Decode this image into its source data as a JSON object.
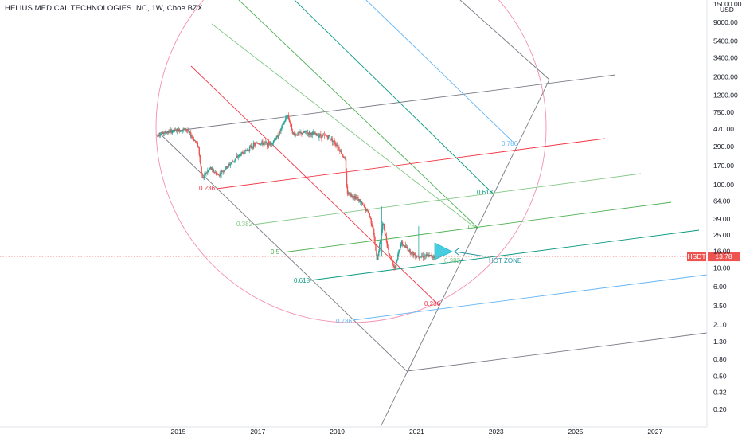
{
  "chart_title": "HELIUS MEDICAL TECHNOLOGIES INC, 1W, Cboe BZX",
  "colors": {
    "up": "#26a69a",
    "down": "#ef5350",
    "price_tag": "#ef5350",
    "fib_236": "#f23645",
    "fib_382": "#81c784",
    "fib_5": "#4caf50",
    "fib_618": "#089981",
    "fib_786": "#64b5f6",
    "hot_zone": "#26c6da"
  },
  "chart_data": {
    "type": "candlestick",
    "symbol": "HSDT",
    "interval": "1W",
    "exchange": "Cboe BZX",
    "yscale": "log",
    "currency": "USD",
    "last_price": 13.78,
    "y_ticks": [
      15000,
      9000,
      5400,
      3400,
      2000,
      1200,
      750,
      470,
      290,
      170,
      100,
      64,
      39,
      25,
      16,
      10,
      6,
      3.5,
      2.1,
      1.3,
      0.8,
      0.5,
      0.32,
      0.2
    ],
    "y_tick_labels": [
      "15000.00",
      "9000.00",
      "5400.00",
      "3400.00",
      "2000.00",
      "1200.00",
      "750.00",
      "470.00",
      "290.00",
      "170.00",
      "100.00",
      "64.00",
      "39.00",
      "25.00",
      "16.00",
      "10.00",
      "6.00",
      "3.50",
      "2.10",
      "1.30",
      "0.80",
      "0.50",
      "0.32",
      "0.20"
    ],
    "x_tick_labels": [
      "2015",
      "2017",
      "2019",
      "2021",
      "2023",
      "2025",
      "2027"
    ],
    "x_ticks": [
      2015,
      2017,
      2019,
      2021,
      2023,
      2025,
      2027
    ],
    "price_path": [
      [
        2014.45,
        400
      ],
      [
        2014.8,
        440
      ],
      [
        2015.2,
        470
      ],
      [
        2015.5,
        300
      ],
      [
        2015.6,
        120
      ],
      [
        2015.8,
        160
      ],
      [
        2016.0,
        130
      ],
      [
        2016.2,
        160
      ],
      [
        2016.5,
        220
      ],
      [
        2016.8,
        280
      ],
      [
        2017.0,
        320
      ],
      [
        2017.3,
        310
      ],
      [
        2017.5,
        380
      ],
      [
        2017.75,
        700
      ],
      [
        2017.9,
        400
      ],
      [
        2018.2,
        430
      ],
      [
        2018.5,
        400
      ],
      [
        2018.8,
        380
      ],
      [
        2019.0,
        300
      ],
      [
        2019.2,
        200
      ],
      [
        2019.25,
        80
      ],
      [
        2019.5,
        70
      ],
      [
        2019.8,
        45
      ],
      [
        2019.9,
        30
      ],
      [
        2020.0,
        12
      ],
      [
        2020.15,
        35
      ],
      [
        2020.3,
        15
      ],
      [
        2020.45,
        10
      ],
      [
        2020.6,
        20
      ],
      [
        2020.9,
        15
      ],
      [
        2021.0,
        14
      ],
      [
        2021.3,
        14
      ],
      [
        2021.45,
        13.78
      ]
    ],
    "fib_levels": [
      "0.236",
      "0.382",
      "0.5",
      "0.618",
      "0.786"
    ],
    "annotations": [
      "HOT ZONE"
    ]
  },
  "axis": {
    "currency_label": "USD"
  },
  "price_tag": {
    "symbol": "HSDT",
    "value": "13.78"
  },
  "hot_zone_label": "HOT ZONE"
}
